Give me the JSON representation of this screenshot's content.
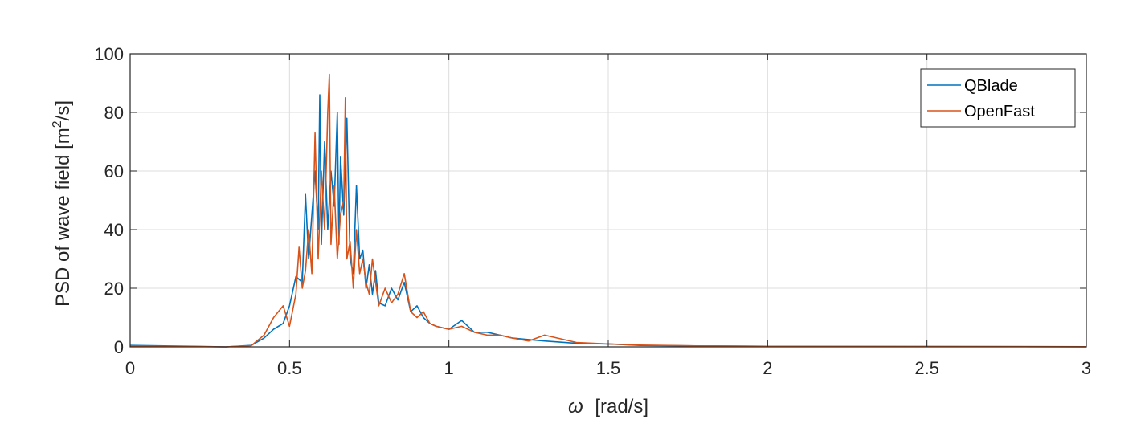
{
  "chart_data": {
    "type": "line",
    "title": "",
    "xlabel_symbol": "ω",
    "xlabel_unit": "[rad/s]",
    "ylabel_main": "PSD of wave field [m",
    "ylabel_sup": "2",
    "ylabel_end": "/s]",
    "xlim": [
      0,
      3
    ],
    "ylim": [
      0,
      100
    ],
    "xticks": [
      0,
      0.5,
      1,
      1.5,
      2,
      2.5,
      3
    ],
    "xtick_labels": [
      "0",
      "0.5",
      "1",
      "1.5",
      "2",
      "2.5",
      "3"
    ],
    "yticks": [
      0,
      20,
      40,
      60,
      80,
      100
    ],
    "ytick_labels": [
      "0",
      "20",
      "40",
      "60",
      "80",
      "100"
    ],
    "grid": true,
    "legend_position": "top-right",
    "series": [
      {
        "name": "QBlade",
        "color": "#0072BD",
        "x": [
          0,
          0.3,
          0.38,
          0.42,
          0.45,
          0.48,
          0.5,
          0.52,
          0.54,
          0.55,
          0.56,
          0.57,
          0.58,
          0.59,
          0.595,
          0.6,
          0.61,
          0.62,
          0.63,
          0.64,
          0.65,
          0.655,
          0.66,
          0.67,
          0.68,
          0.69,
          0.7,
          0.71,
          0.72,
          0.73,
          0.74,
          0.75,
          0.76,
          0.77,
          0.78,
          0.8,
          0.82,
          0.84,
          0.86,
          0.88,
          0.9,
          0.92,
          0.94,
          0.96,
          1.0,
          1.04,
          1.08,
          1.12,
          1.16,
          1.2,
          1.25,
          1.3,
          1.4,
          1.5,
          1.6,
          1.8,
          2.0,
          2.5,
          3.0
        ],
        "y": [
          0.5,
          0,
          0.5,
          3,
          6,
          8,
          14,
          24,
          22,
          52,
          30,
          45,
          60,
          40,
          86,
          35,
          70,
          40,
          60,
          48,
          80,
          35,
          65,
          45,
          78,
          30,
          25,
          55,
          30,
          33,
          20,
          28,
          18,
          26,
          15,
          14,
          20,
          16,
          22,
          12,
          14,
          10,
          8,
          7,
          6,
          9,
          5,
          5,
          4,
          3,
          2.5,
          2,
          1.2,
          1,
          0.5,
          0.3,
          0.2,
          0.1,
          0.05
        ]
      },
      {
        "name": "OpenFast",
        "color": "#D95319",
        "x": [
          0,
          0.3,
          0.38,
          0.42,
          0.45,
          0.48,
          0.5,
          0.52,
          0.53,
          0.54,
          0.55,
          0.56,
          0.57,
          0.58,
          0.59,
          0.6,
          0.61,
          0.62,
          0.625,
          0.63,
          0.64,
          0.65,
          0.66,
          0.67,
          0.675,
          0.68,
          0.69,
          0.7,
          0.71,
          0.72,
          0.73,
          0.74,
          0.75,
          0.76,
          0.78,
          0.8,
          0.82,
          0.84,
          0.86,
          0.88,
          0.9,
          0.92,
          0.94,
          0.96,
          1.0,
          1.04,
          1.08,
          1.12,
          1.16,
          1.2,
          1.25,
          1.3,
          1.4,
          1.5,
          1.6,
          1.8,
          2.0,
          2.5,
          3.0
        ],
        "y": [
          0.3,
          0,
          0.4,
          4,
          10,
          14,
          7,
          18,
          34,
          20,
          26,
          40,
          25,
          73,
          30,
          60,
          40,
          80,
          93,
          35,
          55,
          30,
          45,
          50,
          85,
          30,
          36,
          20,
          40,
          25,
          30,
          22,
          18,
          30,
          14,
          20,
          15,
          18,
          25,
          12,
          10,
          12,
          8,
          7,
          6,
          7,
          5,
          4,
          4,
          3,
          2,
          4,
          1.5,
          1,
          0.6,
          0.3,
          0.2,
          0.1,
          0.05
        ]
      }
    ]
  }
}
